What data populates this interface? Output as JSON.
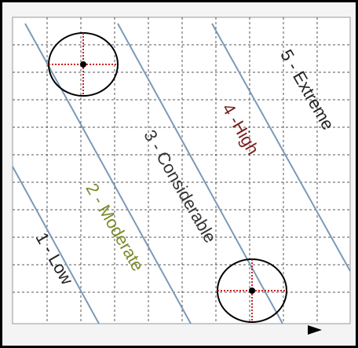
{
  "zones": [
    {
      "label": "1 - Low"
    },
    {
      "label": "2 - Moderate"
    },
    {
      "label": "3 - Considerable"
    },
    {
      "label": "4 -High"
    },
    {
      "label": "5 - Extreme"
    }
  ]
}
